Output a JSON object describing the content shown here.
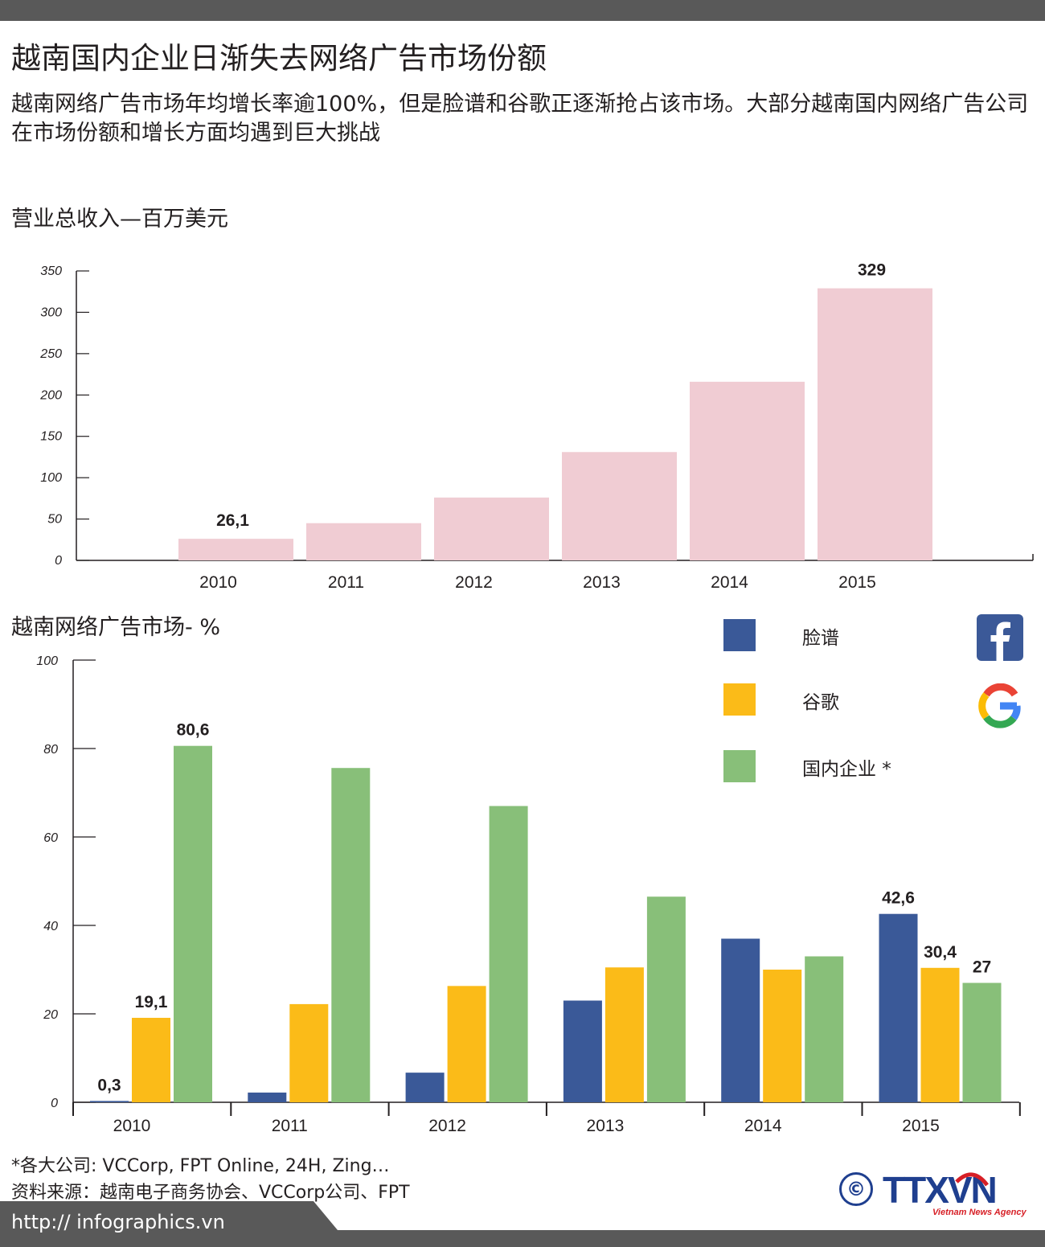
{
  "header": {
    "title": "越南国内企业日渐失去网络广告市场份额",
    "subtitle": "越南网络广告市场年均增长率逾100%，但是脸谱和谷歌正逐渐抢占该市场。大部分越南国内网络广告公司在市场份额和增长方面均遇到巨大挑战"
  },
  "chart_data": [
    {
      "type": "bar",
      "title": "营业总收入—百万美元",
      "categories": [
        "2010",
        "2011",
        "2012",
        "2013",
        "2014",
        "2015"
      ],
      "values": [
        26.1,
        45,
        76,
        131,
        216,
        329
      ],
      "data_labels": {
        "0": "26,1",
        "5": "329"
      },
      "ylim": [
        0,
        350
      ],
      "yticks": [
        0,
        50,
        100,
        150,
        200,
        250,
        300,
        350
      ],
      "grid": false,
      "color": "#f0ccd3"
    },
    {
      "type": "bar",
      "title": "越南网络广告市场- %",
      "categories": [
        "2010",
        "2011",
        "2012",
        "2013",
        "2014",
        "2015"
      ],
      "series": [
        {
          "name": "脸谱",
          "color": "#3a5998",
          "values": [
            0.3,
            2.2,
            6.7,
            23,
            37,
            42.6
          ],
          "labels": {
            "0": "0,3",
            "5": "42,6"
          }
        },
        {
          "name": "谷歌",
          "color": "#fbbb18",
          "values": [
            19.1,
            22.2,
            26.3,
            30.5,
            30,
            30.4
          ],
          "labels": {
            "0": "19,1",
            "5": "30,4"
          }
        },
        {
          "name": "国内企业 *",
          "color": "#88bf79",
          "values": [
            80.6,
            75.6,
            67,
            46.5,
            33,
            27
          ],
          "labels": {
            "0": "80,6",
            "5": "27"
          }
        }
      ],
      "ylim": [
        0,
        100
      ],
      "yticks": [
        0,
        20,
        40,
        60,
        80,
        100
      ],
      "grid": false,
      "legend": "top-right"
    }
  ],
  "legend": {
    "items": [
      {
        "label": "脸谱",
        "color": "#3a5998"
      },
      {
        "label": "谷歌",
        "color": "#fbbb18"
      },
      {
        "label": "国内企业 *",
        "color": "#88bf79"
      }
    ]
  },
  "logos": {
    "facebook": "facebook-logo-icon",
    "google": "google-logo-icon"
  },
  "footer": {
    "note": "*各大公司: VCCorp, FPT Online, 24H, Zing…",
    "source": "资料来源：越南电子商务协会、VCCorp公司、FPT",
    "copyright": "©",
    "agency_logo": "TTXVN",
    "agency_sub": "Vietnam News Agency",
    "url": "http:// infographics.vn"
  },
  "colors": {
    "top_bar": "#595959",
    "footer_bar": "#595959",
    "agency_blue": "#1f3f8f",
    "agency_red": "#d71f26"
  }
}
